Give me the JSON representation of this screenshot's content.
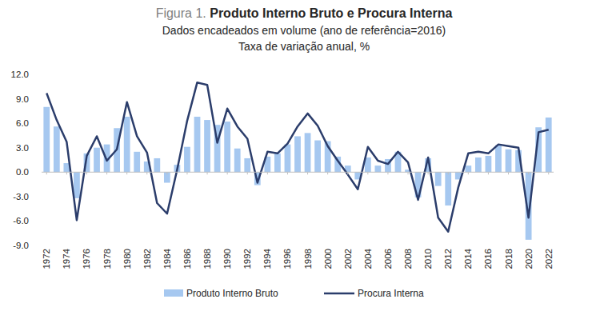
{
  "chart_data": {
    "type": "bar",
    "title": "Figura 1. Produto Interno Bruto e Procura Interna",
    "subtitle": [
      "Dados encadeados em volume (ano de referência=2016)",
      "Taxa de variação anual, %"
    ],
    "categories": [
      "1972",
      null,
      "1974",
      null,
      "1976",
      null,
      "1978",
      null,
      "1980",
      null,
      "1982",
      null,
      "1984",
      null,
      "1986",
      null,
      "1988",
      null,
      "1990",
      null,
      "1992",
      null,
      "1994",
      null,
      "1996",
      null,
      "1998",
      null,
      "2000",
      null,
      "2002",
      null,
      "2004",
      null,
      "2006",
      null,
      "2008",
      null,
      "2010",
      null,
      "2012",
      null,
      "2014",
      null,
      "2016",
      null,
      "2018",
      null,
      "2020",
      null,
      "2022"
    ],
    "series": [
      {
        "name": "Produto Interno Bruto",
        "type": "bar",
        "color": "#a6c8f0",
        "values": [
          8.0,
          5.6,
          1.1,
          -3.2,
          2.3,
          3.0,
          3.4,
          5.4,
          6.8,
          2.5,
          1.3,
          1.7,
          -1.3,
          0.9,
          3.1,
          6.8,
          6.4,
          5.8,
          6.2,
          2.9,
          1.7,
          -1.6,
          1.9,
          2.3,
          3.4,
          4.4,
          4.8,
          3.9,
          3.8,
          1.9,
          0.8,
          -0.9,
          1.8,
          0.8,
          1.6,
          2.5,
          0.3,
          -3.1,
          1.7,
          -1.7,
          -4.1,
          -0.9,
          0.8,
          1.8,
          2.0,
          3.3,
          2.8,
          2.7,
          -8.3,
          5.5,
          6.7
        ]
      },
      {
        "name": "Procura Interna",
        "type": "line",
        "color": "#2b3d6b",
        "values": [
          9.7,
          6.4,
          3.7,
          -5.9,
          2.0,
          4.4,
          1.4,
          2.8,
          8.6,
          4.4,
          2.4,
          -3.8,
          -5.1,
          0.3,
          6.3,
          11.0,
          10.7,
          3.6,
          7.8,
          5.6,
          4.1,
          -1.3,
          2.5,
          2.3,
          3.5,
          5.6,
          7.2,
          5.7,
          3.2,
          1.4,
          -0.3,
          -2.1,
          3.1,
          1.4,
          1.0,
          2.5,
          1.2,
          -3.4,
          1.8,
          -5.6,
          -7.3,
          -1.9,
          2.3,
          2.5,
          2.3,
          3.4,
          3.2,
          3.0,
          -5.6,
          4.9,
          5.2
        ]
      }
    ],
    "ylim": [
      -9,
      12
    ],
    "yticks": [
      {
        "value": -9,
        "label": "-9.0"
      },
      {
        "value": -6,
        "label": "-6.0"
      },
      {
        "value": -3,
        "label": "-3.0"
      },
      {
        "value": 0,
        "label": "0.0"
      },
      {
        "value": 3,
        "label": "3.0"
      },
      {
        "value": 6,
        "label": "6.0"
      },
      {
        "value": 9,
        "label": "9.0"
      },
      {
        "value": 12,
        "label": "12.0"
      }
    ],
    "grid": false,
    "legend": "bottom"
  }
}
